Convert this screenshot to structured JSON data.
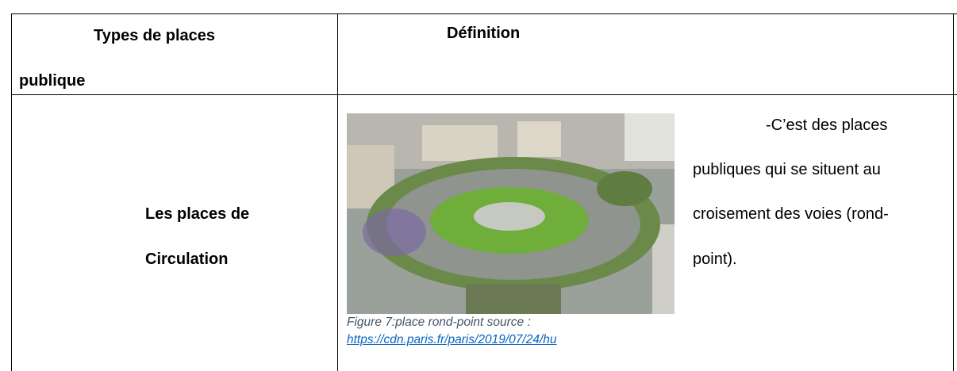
{
  "table": {
    "header": [
      {
        "lines": [
          "Types de places",
          "publique"
        ]
      },
      {
        "lines": [
          "Définition"
        ]
      }
    ],
    "rows": [
      [
        {
          "lines": [
            "Les places de",
            "Circulation"
          ]
        },
        {
          "figure": {
            "caption": "Figure 7:place rond-point source :",
            "link": "https://cdn.paris.fr/paris/2019/07/24/hu"
          },
          "lines": [
            "-C’est des places",
            "publiques qui se situent au",
            "croisement des voies (rond-",
            "point)."
          ]
        }
      ]
    ]
  }
}
